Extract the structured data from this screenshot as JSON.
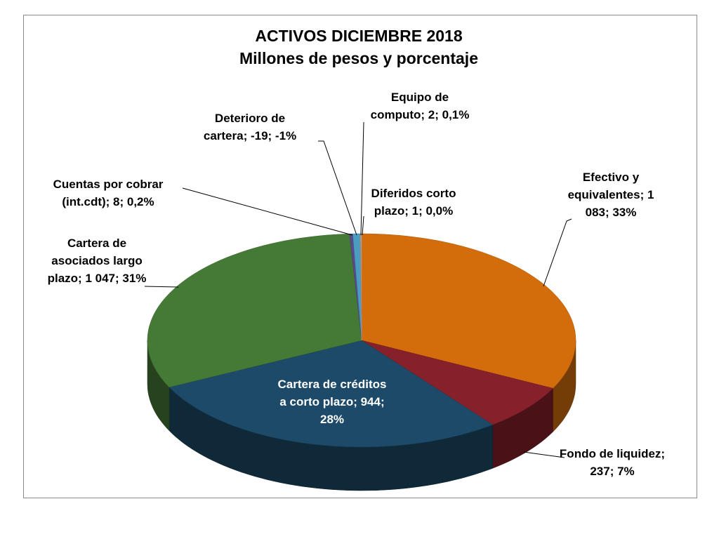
{
  "chart_data": {
    "type": "pie",
    "title_lines": [
      "ACTIVOS  DICIEMBRE 2018",
      "Millones de pesos y porcentaje"
    ],
    "style": "3d-exploded-none",
    "slices": [
      {
        "name": "Efectivo y equivalentes",
        "value": 1083,
        "percent": "33%",
        "color": "#d36d0b",
        "label_lines": [
          "Efectivo y",
          "equivalentes; 1",
          "083; 33%"
        ]
      },
      {
        "name": "Fondo de liquidez",
        "value": 237,
        "percent": "7%",
        "color": "#86202a",
        "label_lines": [
          "Fondo de liquidez;",
          "237; 7%"
        ]
      },
      {
        "name": "Cartera de créditos a corto plazo",
        "value": 944,
        "percent": "28%",
        "color": "#1c4a68",
        "label_lines": [
          "Cartera de créditos",
          "a corto plazo; 944;",
          "28%"
        ]
      },
      {
        "name": "Cartera de asociados largo plazo",
        "value": 1047,
        "percent": "31%",
        "color": "#457a36",
        "label_lines": [
          "Cartera de",
          "asociados  largo",
          "plazo; 1 047; 31%"
        ]
      },
      {
        "name": "Cuentas por cobrar (int.cdt)",
        "value": 8,
        "percent": "0,2%",
        "color": "#5a4a8c",
        "label_lines": [
          "Cuentas por cobrar",
          "(int.cdt); 8; 0,2%"
        ]
      },
      {
        "name": "Deterioro de cartera",
        "value": -19,
        "percent": "-1%",
        "color": "#4a9cc0",
        "label_lines": [
          "Deterioro de",
          "cartera; -19; -1%"
        ]
      },
      {
        "name": "Equipo de computo",
        "value": 2,
        "percent": "0,1%",
        "color": "#f0a050",
        "label_lines": [
          "Equipo de",
          "computo; 2; 0,1%"
        ]
      },
      {
        "name": "Diferidos corto plazo",
        "value": 1,
        "percent": "0,0%",
        "color": "#c8b8d8",
        "label_lines": [
          "Diferidos corto",
          "plazo; 1; 0,0%"
        ]
      }
    ]
  }
}
